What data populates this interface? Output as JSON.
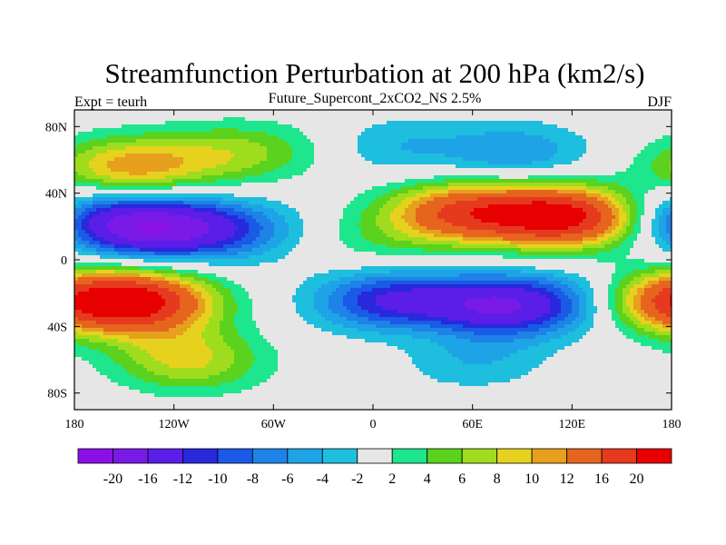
{
  "title": "Streamfunction Perturbation at 200 hPa (km2/s)",
  "left_label": "Expt = teurh",
  "center_label": "Future_Supercont_2xCO2_NS 2.5%",
  "right_label": "DJF",
  "chart_data": {
    "type": "heatmap",
    "projection": "cylindrical equidistant",
    "xlim": [
      -180,
      180
    ],
    "ylim": [
      -90,
      90
    ],
    "x_ticks": [
      {
        "value": -180,
        "label": "180"
      },
      {
        "value": -120,
        "label": "120W"
      },
      {
        "value": -60,
        "label": "60W"
      },
      {
        "value": 0,
        "label": "0"
      },
      {
        "value": 60,
        "label": "60E"
      },
      {
        "value": 120,
        "label": "120E"
      },
      {
        "value": 180,
        "label": "180"
      }
    ],
    "y_ticks": [
      {
        "value": 80,
        "label": "80N"
      },
      {
        "value": 40,
        "label": "40N"
      },
      {
        "value": 0,
        "label": "0"
      },
      {
        "value": -40,
        "label": "40S"
      },
      {
        "value": -80,
        "label": "80S"
      }
    ],
    "colorbar": {
      "levels": [
        "-20",
        "-16",
        "-12",
        "-10",
        "-8",
        "-6",
        "-4",
        "-2",
        "2",
        "4",
        "6",
        "8",
        "10",
        "12",
        "16",
        "20"
      ],
      "colors": [
        "#8a10e6",
        "#7a1ae6",
        "#5a1ee8",
        "#2828dc",
        "#1a5ae6",
        "#1e82e6",
        "#1ea4e6",
        "#1ebede",
        "#e6e6e6",
        "#1ee68c",
        "#5ad21e",
        "#a0dc1e",
        "#e6d21e",
        "#e6a01e",
        "#e6641e",
        "#e63a1e",
        "#e60000"
      ]
    },
    "centers": [
      {
        "lon": -140,
        "lat": 20,
        "value": -17
      },
      {
        "lon": -90,
        "lat": 18,
        "value": -9
      },
      {
        "lon": -148,
        "lat": 55,
        "value": 11
      },
      {
        "lon": -88,
        "lat": 63,
        "value": 6
      },
      {
        "lon": 118,
        "lat": 26,
        "value": 21
      },
      {
        "lon": 62,
        "lat": 28,
        "value": 12
      },
      {
        "lon": 86,
        "lat": 64,
        "value": -6
      },
      {
        "lon": 10,
        "lat": 68,
        "value": -4
      },
      {
        "lon": -45,
        "lat": 68,
        "value": 2
      },
      {
        "lon": 40,
        "lat": 30,
        "value": 5
      },
      {
        "lon": 5,
        "lat": 12,
        "value": 3
      },
      {
        "lon": 75,
        "lat": -28,
        "value": -15
      },
      {
        "lon": 10,
        "lat": -25,
        "value": -12
      },
      {
        "lon": 130,
        "lat": -25,
        "value": -6
      },
      {
        "lon": 60,
        "lat": -60,
        "value": -4
      },
      {
        "lon": -140,
        "lat": -25,
        "value": 19
      },
      {
        "lon": -110,
        "lat": -62,
        "value": 7
      },
      {
        "lon": -120,
        "lat": -50,
        "value": 2.5
      },
      {
        "lon": 175,
        "lat": -25,
        "value": 14
      },
      {
        "lon": 178,
        "lat": 30,
        "value": -4
      },
      {
        "lon": 40,
        "lat": -40,
        "value": 2
      }
    ]
  }
}
